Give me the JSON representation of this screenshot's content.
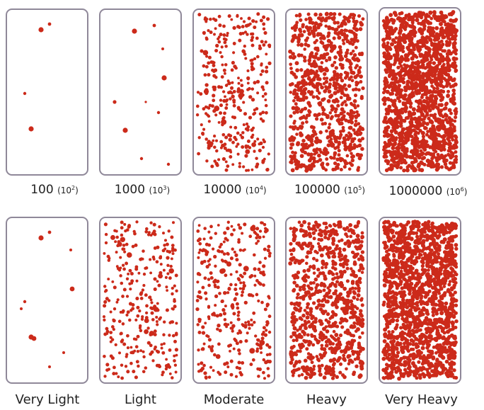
{
  "colors": {
    "dot": "#cc2a1a",
    "border": "#8f8899",
    "text": "#222222"
  },
  "rows": [
    {
      "id": "counts",
      "panels": [
        {
          "count": "100",
          "exp_base": "(10",
          "exp_power": "2",
          "exp_close": ")",
          "density_level": 1
        },
        {
          "count": "1000",
          "exp_base": "(10",
          "exp_power": "3",
          "exp_close": ")",
          "density_level": 2
        },
        {
          "count": "10000",
          "exp_base": "(10",
          "exp_power": "4",
          "exp_close": ")",
          "density_level": 3
        },
        {
          "count": "100000",
          "exp_base": "(10",
          "exp_power": "5",
          "exp_close": ")",
          "density_level": 4
        },
        {
          "count": "1000000",
          "exp_base": "(10",
          "exp_power": "6",
          "exp_close": ")",
          "density_level": 5
        }
      ]
    },
    {
      "id": "categories",
      "panels": [
        {
          "label": "Very Light",
          "density_level": 1
        },
        {
          "label": "Light",
          "density_level": 2
        },
        {
          "label": "Moderate",
          "density_level": 3
        },
        {
          "label": "Heavy",
          "density_level": 4
        },
        {
          "label": "Very Heavy",
          "density_level": 5
        }
      ]
    }
  ]
}
